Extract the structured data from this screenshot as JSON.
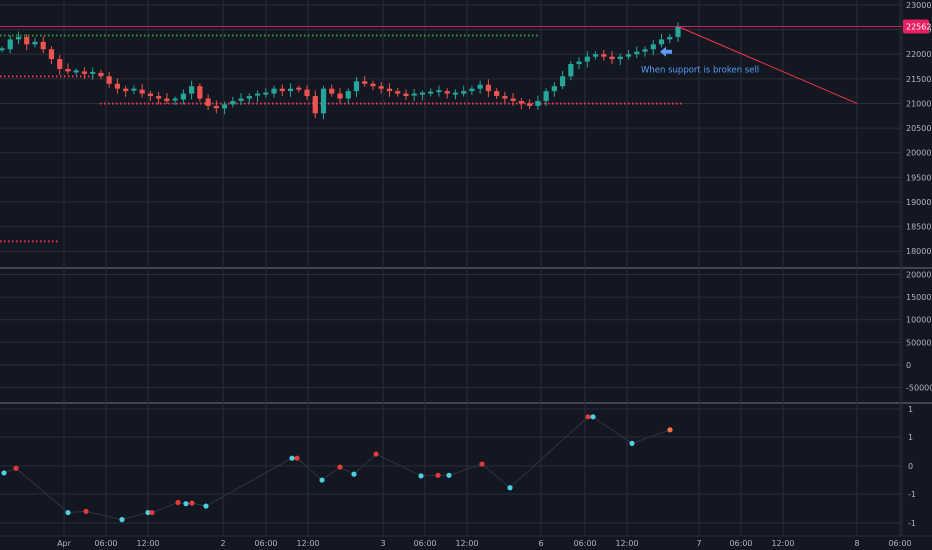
{
  "chart_data": [
    {
      "type": "candlestick",
      "name_hint": "price",
      "ylim": [
        17700,
        23100
      ],
      "y_ticks": [
        "23000",
        "22500",
        "22000",
        "21500",
        "21000",
        "20500",
        "20000",
        "19500",
        "19000",
        "18500",
        "18000"
      ],
      "x_ticks": [
        "Apr",
        "06:00",
        "12:00",
        "2",
        "06:00",
        "12:00",
        "3",
        "06:00",
        "12:00",
        "6",
        "06:00",
        "12:00",
        "7",
        "06:00",
        "12:00",
        "8",
        "06:00"
      ],
      "last_price_label": "22562",
      "last_price": 22562,
      "colors": {
        "up": "#26a69a",
        "down": "#ef5350",
        "support": "#f23645",
        "resistance": "#2e9e2e",
        "projection": "#f23645",
        "annotation": "#5b9cf6",
        "price_line": "#e91e63"
      },
      "annotation": "When support is broken sell",
      "levels": [
        {
          "kind": "dotted-green",
          "value": 22380,
          "x_from": "start",
          "x_to": "6 (mid)"
        },
        {
          "kind": "dotted-red",
          "value": 21000,
          "x_from": "2 (early)",
          "x_to": "7 (early)"
        },
        {
          "kind": "dotted-red",
          "value": 18200,
          "x_from": "start",
          "x_to": "Apr"
        },
        {
          "kind": "dotted-red",
          "value": 21550,
          "x_from": "start",
          "x_to": "Apr (mid)"
        }
      ],
      "projection": {
        "from": 22562,
        "to": 21000
      },
      "price_path": [
        22100,
        22300,
        22350,
        22200,
        22250,
        22100,
        21900,
        21700,
        21650,
        21650,
        21600,
        21620,
        21550,
        21400,
        21300,
        21250,
        21280,
        21200,
        21150,
        21100,
        21050,
        21080,
        21200,
        21350,
        21100,
        20950,
        20900,
        20980,
        21050,
        21100,
        21150,
        21180,
        21200,
        21300,
        21250,
        21300,
        21280,
        21150,
        20800,
        21300,
        21200,
        21100,
        21250,
        21450,
        21400,
        21350,
        21300,
        21250,
        21200,
        21150,
        21180,
        21200,
        21220,
        21250,
        21200,
        21200,
        21250,
        21300,
        21380,
        21250,
        21150,
        21100,
        21050,
        21000,
        20950,
        21050,
        21250,
        21350,
        21550,
        21800,
        21850,
        21950,
        22000,
        21950,
        21900,
        21950,
        22000,
        22050,
        22100,
        22200,
        22300,
        22350,
        22562
      ]
    },
    {
      "type": "bar",
      "name_hint": "volume",
      "ylim": [
        -80000,
        210000
      ],
      "y_ticks": [
        "200000",
        "150000",
        "100000",
        "50000",
        "0",
        "-50000"
      ],
      "values": []
    },
    {
      "type": "scatter",
      "name_hint": "oscillator",
      "ylim": [
        -1.1,
        1.1
      ],
      "y_ticks": [
        "1",
        "1",
        "0",
        "-1",
        "-1"
      ],
      "colors": {
        "low": "#4dd0e1",
        "high": "#e53935",
        "alt": "#ff7043"
      },
      "points": [
        {
          "x": 4,
          "y": -0.05,
          "c": "low"
        },
        {
          "x": 16,
          "y": 0.03,
          "c": "high"
        },
        {
          "x": 68,
          "y": -0.72,
          "c": "low"
        },
        {
          "x": 86,
          "y": -0.7,
          "c": "high"
        },
        {
          "x": 122,
          "y": -0.84,
          "c": "low"
        },
        {
          "x": 148,
          "y": -0.72,
          "c": "low"
        },
        {
          "x": 152,
          "y": -0.72,
          "c": "high"
        },
        {
          "x": 178,
          "y": -0.55,
          "c": "high"
        },
        {
          "x": 186,
          "y": -0.57,
          "c": "low"
        },
        {
          "x": 192,
          "y": -0.56,
          "c": "high"
        },
        {
          "x": 206,
          "y": -0.61,
          "c": "low"
        },
        {
          "x": 292,
          "y": 0.2,
          "c": "low"
        },
        {
          "x": 297,
          "y": 0.2,
          "c": "high"
        },
        {
          "x": 322,
          "y": -0.17,
          "c": "low"
        },
        {
          "x": 340,
          "y": 0.05,
          "c": "high"
        },
        {
          "x": 354,
          "y": -0.07,
          "c": "low"
        },
        {
          "x": 376,
          "y": 0.27,
          "c": "high"
        },
        {
          "x": 421,
          "y": -0.1,
          "c": "low"
        },
        {
          "x": 438,
          "y": -0.09,
          "c": "high"
        },
        {
          "x": 449,
          "y": -0.09,
          "c": "low"
        },
        {
          "x": 482,
          "y": 0.1,
          "c": "high"
        },
        {
          "x": 510,
          "y": -0.3,
          "c": "low"
        },
        {
          "x": 588,
          "y": 0.9,
          "c": "high"
        },
        {
          "x": 593,
          "y": 0.9,
          "c": "low"
        },
        {
          "x": 632,
          "y": 0.45,
          "c": "low"
        },
        {
          "x": 670,
          "y": 0.68,
          "c": "alt"
        }
      ]
    }
  ]
}
